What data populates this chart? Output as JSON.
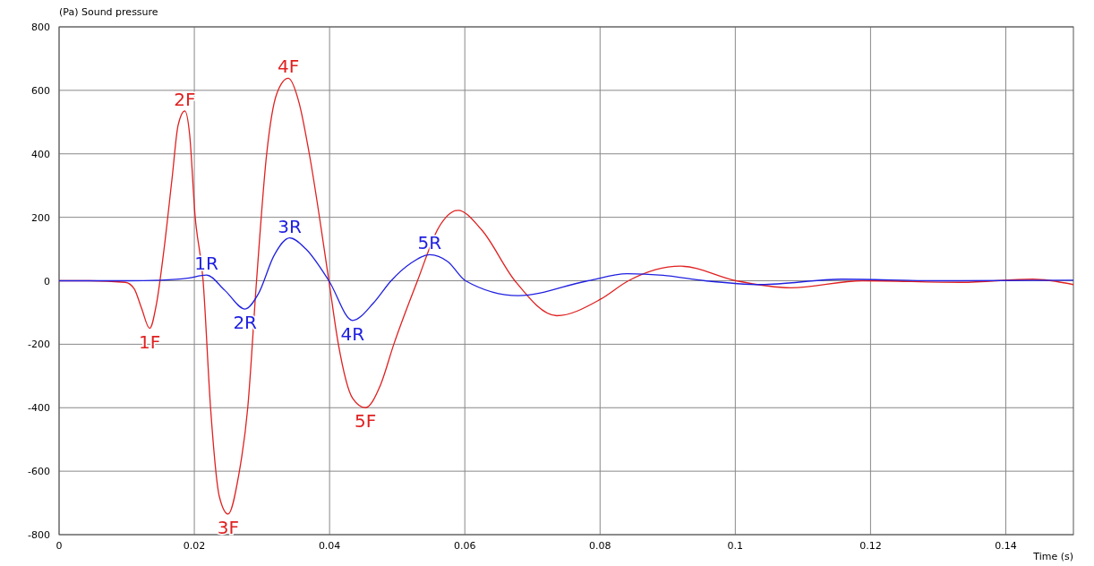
{
  "chart_data": {
    "type": "line",
    "ylabel": "(Pa)  Sound pressure",
    "xlabel": "Time  (s)",
    "xlim": [
      0,
      0.15
    ],
    "xticks": [
      0,
      0.02,
      0.04,
      0.06,
      0.08,
      0.1,
      0.12,
      0.14
    ],
    "ylim": [
      -800,
      800
    ],
    "yticks": [
      -800,
      -600,
      -400,
      -200,
      0,
      200,
      400,
      600,
      800
    ],
    "grid": true,
    "marker": "none",
    "line_style": "solid",
    "series": [
      {
        "color": "#e02020",
        "x": [
          0,
          0.0045,
          0.0098,
          0.0111,
          0.0122,
          0.0134,
          0.0144,
          0.0155,
          0.0167,
          0.0176,
          0.0186,
          0.0193,
          0.0201,
          0.0213,
          0.0224,
          0.0237,
          0.025,
          0.0265,
          0.0279,
          0.0292,
          0.0307,
          0.0322,
          0.0339,
          0.0355,
          0.037,
          0.0399,
          0.0413,
          0.0434,
          0.0453,
          0.0475,
          0.0495,
          0.053,
          0.0562,
          0.059,
          0.0625,
          0.0674,
          0.0736,
          0.08,
          0.0842,
          0.0919,
          0.1001,
          0.1082,
          0.1188,
          0.1334,
          0.144,
          0.15
        ],
        "values": [
          0,
          0,
          -5,
          -25,
          -87,
          -150,
          -73,
          96,
          321,
          490,
          535,
          462,
          208,
          0,
          -400,
          -680,
          -735,
          -620,
          -400,
          0,
          400,
          590,
          638,
          560,
          400,
          0,
          -200,
          -370,
          -400,
          -330,
          -200,
          0,
          170,
          222,
          160,
          0,
          -110,
          -59,
          0,
          46,
          0,
          -22,
          0,
          -5,
          5,
          -12
        ]
      },
      {
        "color": "#2020e0",
        "x": [
          0,
          0.01,
          0.015,
          0.019,
          0.0218,
          0.0245,
          0.0275,
          0.0295,
          0.0318,
          0.0341,
          0.0365,
          0.0399,
          0.0434,
          0.0465,
          0.0491,
          0.052,
          0.0548,
          0.0575,
          0.0601,
          0.0679,
          0.0782,
          0.084,
          0.0893,
          0.0955,
          0.1038,
          0.1158,
          0.13,
          0.15
        ],
        "values": [
          0,
          0,
          2,
          8,
          18,
          -30,
          -89,
          -40,
          80,
          135,
          100,
          0,
          -125,
          -70,
          0,
          55,
          82,
          60,
          0,
          -47,
          0,
          22,
          17,
          0,
          -12,
          5,
          0,
          2
        ]
      }
    ],
    "annotations": [
      {
        "text": "1F",
        "x": 0.0134,
        "y": -150
      },
      {
        "text": "2F",
        "x": 0.0186,
        "y": 535
      },
      {
        "text": "3F",
        "x": 0.025,
        "y": -735
      },
      {
        "text": "4F",
        "x": 0.0339,
        "y": 638
      },
      {
        "text": "5F",
        "x": 0.0453,
        "y": -400
      },
      {
        "text": "1R",
        "x": 0.0218,
        "y": 18
      },
      {
        "text": "2R",
        "x": 0.0275,
        "y": -89
      },
      {
        "text": "3R",
        "x": 0.0341,
        "y": 135
      },
      {
        "text": "4R",
        "x": 0.0434,
        "y": -125
      },
      {
        "text": "5R",
        "x": 0.0548,
        "y": 82
      }
    ]
  }
}
